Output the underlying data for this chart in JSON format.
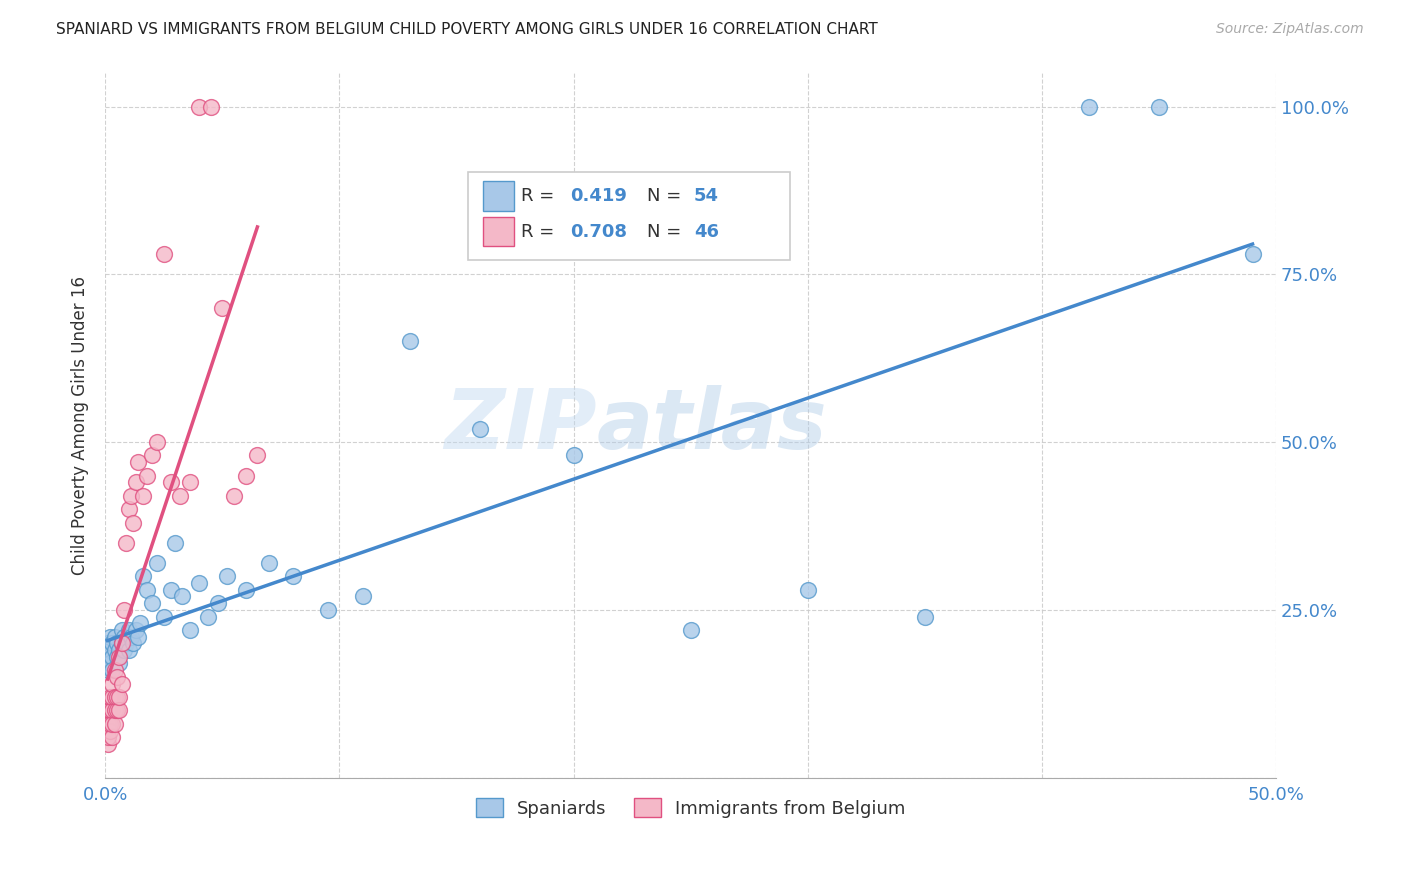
{
  "title": "SPANIARD VS IMMIGRANTS FROM BELGIUM CHILD POVERTY AMONG GIRLS UNDER 16 CORRELATION CHART",
  "source": "Source: ZipAtlas.com",
  "ylabel": "Child Poverty Among Girls Under 16",
  "watermark_zip": "ZIP",
  "watermark_atlas": "atlas",
  "xlim": [
    0.0,
    0.5
  ],
  "ylim": [
    0.0,
    1.05
  ],
  "xticks": [
    0.0,
    0.1,
    0.2,
    0.3,
    0.4,
    0.5
  ],
  "xticklabels": [
    "0.0%",
    "",
    "",
    "",
    "",
    "50.0%"
  ],
  "yticks": [
    0.0,
    0.25,
    0.5,
    0.75,
    1.0
  ],
  "yticklabels_right": [
    "",
    "25.0%",
    "50.0%",
    "75.0%",
    "100.0%"
  ],
  "spaniards_color": "#a8c8e8",
  "belgium_color": "#f4b8c8",
  "spaniards_edge_color": "#5599cc",
  "belgium_edge_color": "#e05080",
  "spaniards_line_color": "#4488cc",
  "belgium_line_color": "#e05080",
  "r_spaniards": 0.419,
  "n_spaniards": 54,
  "r_belgium": 0.708,
  "n_belgium": 46,
  "legend_label_1": "Spaniards",
  "legend_label_2": "Immigrants from Belgium",
  "text_color_blue": "#4488cc",
  "text_color_dark": "#333333",
  "spaniards_x": [
    0.001,
    0.001,
    0.001,
    0.002,
    0.002,
    0.002,
    0.003,
    0.003,
    0.003,
    0.004,
    0.004,
    0.005,
    0.005,
    0.006,
    0.006,
    0.007,
    0.007,
    0.008,
    0.008,
    0.009,
    0.01,
    0.01,
    0.011,
    0.012,
    0.013,
    0.014,
    0.015,
    0.016,
    0.018,
    0.02,
    0.022,
    0.025,
    0.028,
    0.03,
    0.033,
    0.036,
    0.04,
    0.044,
    0.048,
    0.052,
    0.06,
    0.07,
    0.08,
    0.095,
    0.11,
    0.13,
    0.16,
    0.2,
    0.25,
    0.3,
    0.35,
    0.42,
    0.45,
    0.49
  ],
  "spaniards_y": [
    0.2,
    0.18,
    0.16,
    0.19,
    0.17,
    0.21,
    0.18,
    0.2,
    0.16,
    0.19,
    0.21,
    0.18,
    0.2,
    0.19,
    0.17,
    0.2,
    0.22,
    0.19,
    0.21,
    0.2,
    0.22,
    0.19,
    0.21,
    0.2,
    0.22,
    0.21,
    0.23,
    0.3,
    0.28,
    0.26,
    0.32,
    0.24,
    0.28,
    0.35,
    0.27,
    0.22,
    0.29,
    0.24,
    0.26,
    0.3,
    0.28,
    0.32,
    0.3,
    0.25,
    0.27,
    0.65,
    0.52,
    0.48,
    0.22,
    0.28,
    0.24,
    1.0,
    1.0,
    0.78
  ],
  "belgium_x": [
    0.001,
    0.001,
    0.001,
    0.001,
    0.002,
    0.002,
    0.002,
    0.002,
    0.003,
    0.003,
    0.003,
    0.003,
    0.003,
    0.004,
    0.004,
    0.004,
    0.004,
    0.005,
    0.005,
    0.005,
    0.006,
    0.006,
    0.006,
    0.007,
    0.007,
    0.008,
    0.009,
    0.01,
    0.011,
    0.012,
    0.013,
    0.014,
    0.016,
    0.018,
    0.02,
    0.022,
    0.025,
    0.028,
    0.032,
    0.036,
    0.04,
    0.045,
    0.05,
    0.055,
    0.06,
    0.065
  ],
  "belgium_y": [
    0.05,
    0.06,
    0.08,
    0.1,
    0.07,
    0.08,
    0.1,
    0.12,
    0.06,
    0.08,
    0.1,
    0.12,
    0.14,
    0.08,
    0.1,
    0.12,
    0.16,
    0.1,
    0.12,
    0.15,
    0.1,
    0.12,
    0.18,
    0.14,
    0.2,
    0.25,
    0.35,
    0.4,
    0.42,
    0.38,
    0.44,
    0.47,
    0.42,
    0.45,
    0.48,
    0.5,
    0.78,
    0.44,
    0.42,
    0.44,
    1.0,
    1.0,
    0.7,
    0.42,
    0.45,
    0.48
  ]
}
